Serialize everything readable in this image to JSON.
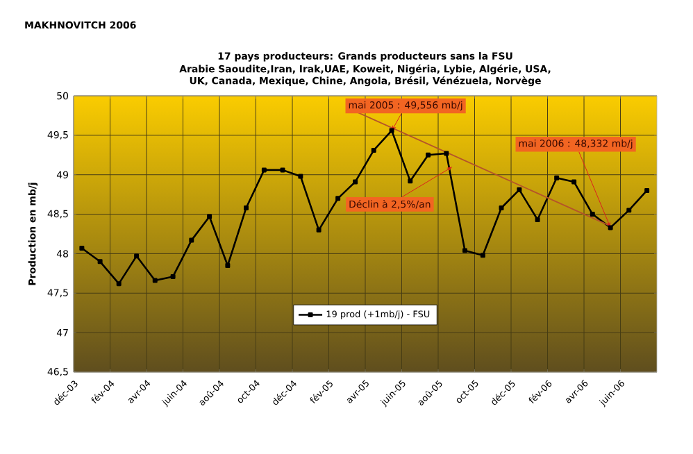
{
  "chart_data": {
    "type": "line",
    "title": "17 pays producteurs: Grands producteurs sans la FSU",
    "subtitle": "Arabie Saoudite,Iran, Irak,UAE, Koweit, Nigéria, Lybie, Algérie, USA, UK, Canada, Mexique, Chine, Angola, Brésil, Vénézuela, Norvège",
    "ylabel": "Production en mb/j",
    "x": [
      "2003-12-15",
      "2004-01-15",
      "2004-02-15",
      "2004-03-15",
      "2004-04-15",
      "2004-05-15",
      "2004-06-15",
      "2004-07-15",
      "2004-08-15",
      "2004-09-15",
      "2004-10-15",
      "2004-11-15",
      "2004-12-15",
      "2005-01-15",
      "2005-02-15",
      "2005-03-15",
      "2005-04-15",
      "2005-05-15",
      "2005-06-15",
      "2005-07-15",
      "2005-08-15",
      "2005-09-15",
      "2005-10-15",
      "2005-11-15",
      "2005-12-15",
      "2006-01-15",
      "2006-02-15",
      "2006-03-15",
      "2006-04-15",
      "2006-05-15",
      "2006-06-15",
      "2006-07-15"
    ],
    "series": [
      {
        "name": "19 prod (+1mb/j) - FSU",
        "color": "#000000",
        "marker": "square",
        "values": [
          48.07,
          47.9,
          47.62,
          47.97,
          47.66,
          47.71,
          48.17,
          48.47,
          47.85,
          48.58,
          49.06,
          49.06,
          48.98,
          48.3,
          48.7,
          48.91,
          49.31,
          49.56,
          48.92,
          49.25,
          49.27,
          48.04,
          47.98,
          48.58,
          48.81,
          48.43,
          48.96,
          48.91,
          48.5,
          48.33,
          48.55,
          48.8
        ]
      },
      {
        "type": "line",
        "color": "#b5532a",
        "x": [
          "2005-03-01",
          "2006-05-15"
        ],
        "values": [
          49.85,
          48.35
        ]
      }
    ],
    "xlim": [
      "2003-12-01",
      "2006-08-01"
    ],
    "xticks": [
      {
        "value": "2003-12-01",
        "label": "déc-03"
      },
      {
        "value": "2004-02-01",
        "label": "fév-04"
      },
      {
        "value": "2004-04-01",
        "label": "avr-04"
      },
      {
        "value": "2004-06-01",
        "label": "juin-04"
      },
      {
        "value": "2004-08-01",
        "label": "aoû-04"
      },
      {
        "value": "2004-10-01",
        "label": "oct-04"
      },
      {
        "value": "2004-12-01",
        "label": "déc-04"
      },
      {
        "value": "2005-02-01",
        "label": "fév-05"
      },
      {
        "value": "2005-04-01",
        "label": "avr-05"
      },
      {
        "value": "2005-06-01",
        "label": "juin-05"
      },
      {
        "value": "2005-08-01",
        "label": "aoû-05"
      },
      {
        "value": "2005-10-01",
        "label": "oct-05"
      },
      {
        "value": "2005-12-01",
        "label": "déc-05"
      },
      {
        "value": "2006-02-01",
        "label": "fév-06"
      },
      {
        "value": "2006-04-01",
        "label": "avr-06"
      },
      {
        "value": "2006-06-01",
        "label": "juin-06"
      }
    ],
    "ylim": [
      46.5,
      50
    ],
    "yticks": [
      {
        "value": 46.5,
        "label": "46,5"
      },
      47,
      {
        "value": 47.5,
        "label": "47,5"
      },
      48,
      {
        "value": 48.5,
        "label": "48,5"
      },
      49,
      {
        "value": 49.5,
        "label": "49,5"
      },
      50
    ],
    "grid": true,
    "legend": "bottom",
    "line_style": "solid",
    "annotations": [
      "MAKHNOVITCH 2006",
      {
        "text": "mai 2005 : 49,556 mb/j",
        "x": "2005-05-15",
        "y": 49.556
      },
      {
        "text": "Déclin à 2,5%/an",
        "x": "2005-08-25",
        "y": 49.1
      },
      {
        "text": "mai 2006 : 48,332 mb/j",
        "x": "2006-05-15",
        "y": 48.332
      }
    ]
  }
}
